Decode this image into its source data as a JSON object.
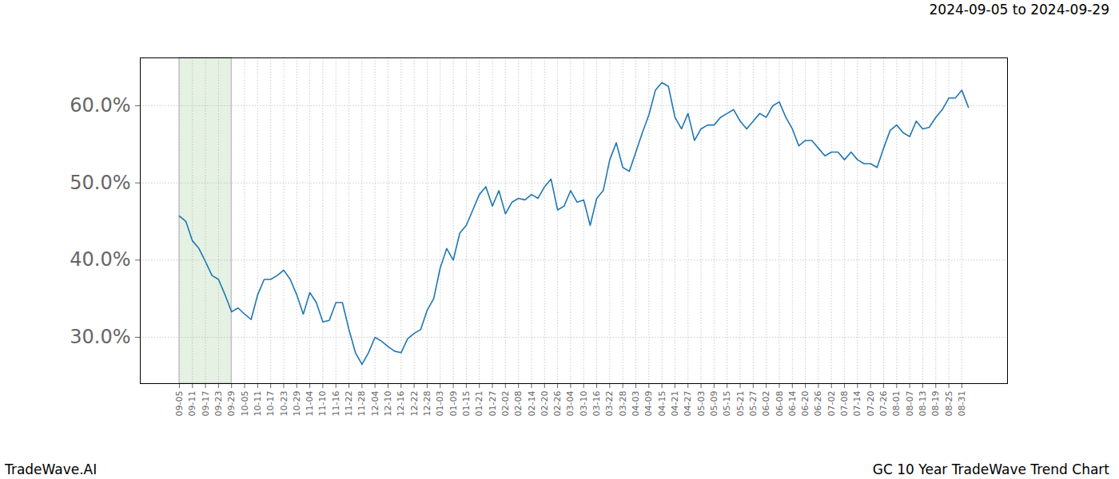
{
  "chart_data": {
    "type": "line",
    "title": "2024-09-05 to 2024-09-29",
    "caption_left": "TradeWave.AI",
    "caption_right": "GC 10 Year TradeWave Trend Chart",
    "highlight": [
      "09-05",
      "09-29"
    ],
    "categories": [
      "09-05",
      null,
      "09-11",
      null,
      "09-17",
      null,
      "09-23",
      null,
      "09-29",
      null,
      "10-05",
      null,
      "10-11",
      null,
      "10-17",
      null,
      "10-23",
      null,
      "10-29",
      null,
      "11-04",
      null,
      "11-10",
      null,
      "11-16",
      null,
      "11-22",
      null,
      "11-28",
      null,
      "12-04",
      null,
      "12-10",
      null,
      "12-16",
      null,
      "12-22",
      null,
      "12-28",
      null,
      "01-03",
      null,
      "01-09",
      null,
      "01-15",
      null,
      "01-21",
      null,
      "01-27",
      null,
      "02-02",
      null,
      "02-08",
      null,
      "02-14",
      null,
      "02-20",
      null,
      "02-26",
      null,
      "03-04",
      null,
      "03-10",
      null,
      "03-16",
      null,
      "03-22",
      null,
      "03-28",
      null,
      "04-03",
      null,
      "04-09",
      null,
      "04-15",
      null,
      "04-21",
      null,
      "04-27",
      null,
      "05-03",
      null,
      "05-09",
      null,
      "05-15",
      null,
      "05-21",
      null,
      "05-27",
      null,
      "06-02",
      null,
      "06-08",
      null,
      "06-14",
      null,
      "06-20",
      null,
      "06-26",
      null,
      "07-02",
      null,
      "07-08",
      null,
      "07-14",
      null,
      "07-20",
      null,
      "07-26",
      null,
      "08-01",
      null,
      "08-07",
      null,
      "08-13",
      null,
      "08-19",
      null,
      "08-25",
      null,
      "08-31",
      null
    ],
    "values": [
      45.7,
      45.0,
      42.5,
      41.5,
      39.8,
      38.0,
      37.5,
      35.5,
      33.3,
      33.8,
      33.0,
      32.3,
      35.5,
      37.5,
      37.5,
      38.0,
      38.7,
      37.5,
      35.5,
      33.0,
      35.8,
      34.5,
      32.0,
      32.2,
      34.5,
      34.5,
      31.0,
      28.0,
      26.5,
      28.0,
      30.0,
      29.5,
      28.8,
      28.2,
      28.0,
      29.8,
      30.5,
      31.0,
      33.5,
      35.0,
      39.0,
      41.5,
      40.0,
      43.5,
      44.5,
      46.5,
      48.5,
      49.5,
      47.0,
      49.0,
      46.0,
      47.5,
      48.0,
      47.8,
      48.5,
      48.0,
      49.5,
      50.5,
      46.5,
      47.0,
      49.0,
      47.5,
      47.8,
      44.5,
      48.0,
      49.0,
      53.0,
      55.2,
      52.0,
      51.5,
      54.0,
      56.5,
      58.8,
      62.0,
      63.0,
      62.5,
      58.5,
      57.0,
      59.0,
      55.5,
      57.0,
      57.5,
      57.5,
      58.5,
      59.0,
      59.5,
      58.0,
      57.0,
      58.0,
      59.0,
      58.5,
      60.0,
      60.5,
      58.5,
      57.0,
      54.8,
      55.5,
      55.5,
      54.5,
      53.5,
      54.0,
      54.0,
      53.0,
      54.0,
      53.0,
      52.5,
      52.5,
      52.0,
      54.5,
      56.8,
      57.5,
      56.5,
      56.0,
      58.0,
      57.0,
      57.2,
      58.5,
      59.5,
      61.0,
      61.0,
      62.0,
      59.8
    ],
    "color": "#1f77b4",
    "ylim": [
      24,
      66.2
    ],
    "yticks": [
      {
        "value": 30,
        "label": "30.0%"
      },
      {
        "value": 40,
        "label": "40.0%"
      },
      {
        "value": 50,
        "label": "50.0%"
      },
      {
        "value": 60,
        "label": "60.0%"
      }
    ],
    "grid": true
  }
}
